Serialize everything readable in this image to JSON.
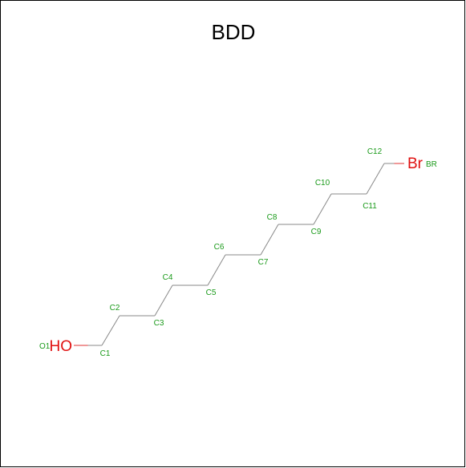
{
  "title": "BDD",
  "colors": {
    "bond": "#888888",
    "heteroatom_bond": "#e03030",
    "atom_label": "#1a9a1a",
    "element_symbol": "#e01010"
  },
  "atoms": [
    {
      "id": "O1",
      "label": "O1",
      "symbol": "HO"
    },
    {
      "id": "C1",
      "label": "C1"
    },
    {
      "id": "C2",
      "label": "C2"
    },
    {
      "id": "C3",
      "label": "C3"
    },
    {
      "id": "C4",
      "label": "C4"
    },
    {
      "id": "C5",
      "label": "C5"
    },
    {
      "id": "C6",
      "label": "C6"
    },
    {
      "id": "C7",
      "label": "C7"
    },
    {
      "id": "C8",
      "label": "C8"
    },
    {
      "id": "C9",
      "label": "C9"
    },
    {
      "id": "C10",
      "label": "C10"
    },
    {
      "id": "C11",
      "label": "C11"
    },
    {
      "id": "C12",
      "label": "C12"
    },
    {
      "id": "BR",
      "label": "BR",
      "symbol": "Br"
    }
  ],
  "bonds": [
    [
      "O1",
      "C1"
    ],
    [
      "C1",
      "C2"
    ],
    [
      "C2",
      "C3"
    ],
    [
      "C3",
      "C4"
    ],
    [
      "C4",
      "C5"
    ],
    [
      "C5",
      "C6"
    ],
    [
      "C6",
      "C7"
    ],
    [
      "C7",
      "C8"
    ],
    [
      "C8",
      "C9"
    ],
    [
      "C9",
      "C10"
    ],
    [
      "C10",
      "C11"
    ],
    [
      "C11",
      "C12"
    ],
    [
      "C12",
      "BR"
    ]
  ]
}
